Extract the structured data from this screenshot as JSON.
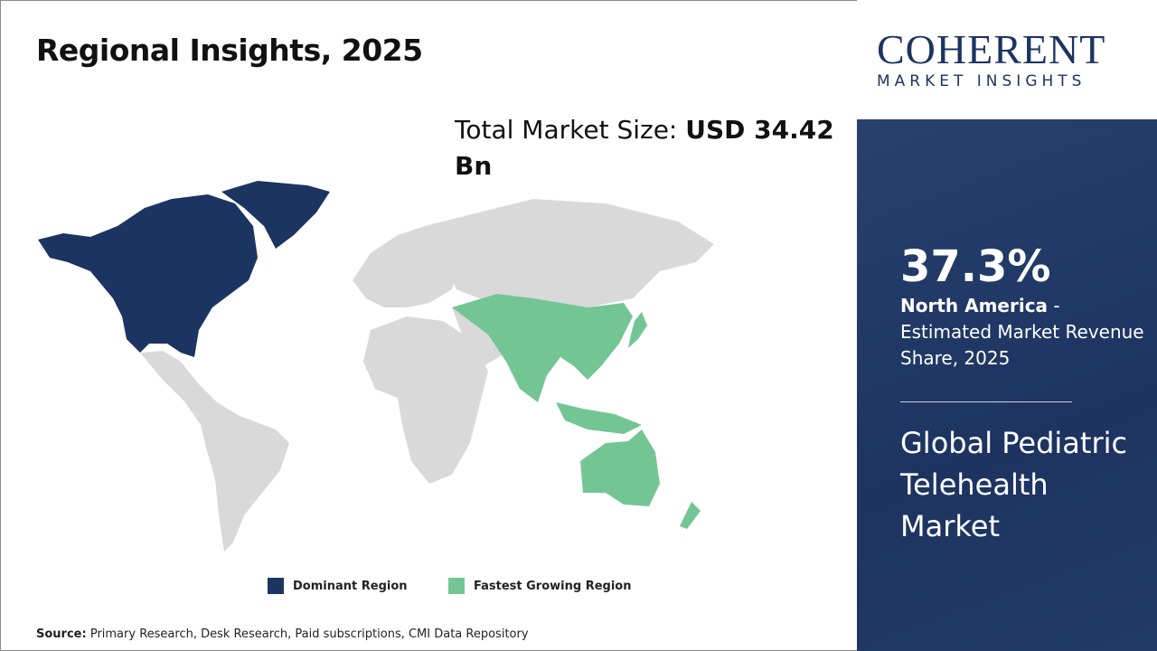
{
  "title": "Regional Insights, 2025",
  "market_size": {
    "label": "Total Market Size:",
    "value": "USD 34.42 Bn"
  },
  "colors": {
    "dominant": "#1b3461",
    "fastest": "#74c594",
    "other": "#d9d9d9",
    "panel": "#1d3461"
  },
  "legend": [
    {
      "label": "Dominant Region",
      "color": "#1b3461"
    },
    {
      "label": "Fastest Growing Region",
      "color": "#74c594"
    }
  ],
  "map": {
    "dominant_region": "North America",
    "fastest_growing_region": "Asia Pacific"
  },
  "source": {
    "label": "Source:",
    "text": "Primary Research, Desk Research, Paid subscriptions, CMI Data Repository"
  },
  "logo": {
    "main": "COHERENT",
    "sub": "MARKET INSIGHTS"
  },
  "panel": {
    "share": "37.3%",
    "region": "North America",
    "description": " - Estimated Market Revenue Share, 2025",
    "market_name": "Global Pediatric Telehealth Market"
  }
}
